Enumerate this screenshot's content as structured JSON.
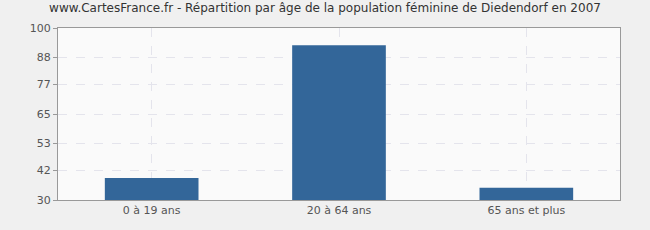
{
  "chart_data": {
    "type": "bar",
    "title": "www.CartesFrance.fr - Répartition par âge de la population féminine de Diedendorf en 2007",
    "categories": [
      "0 à 19 ans",
      "20 à 64 ans",
      "65 ans et plus"
    ],
    "values": [
      39,
      93,
      35
    ],
    "color": "#336699",
    "ylim": [
      30,
      100
    ],
    "yticks": [
      30,
      42,
      53,
      65,
      77,
      88,
      100
    ],
    "grid": true
  }
}
